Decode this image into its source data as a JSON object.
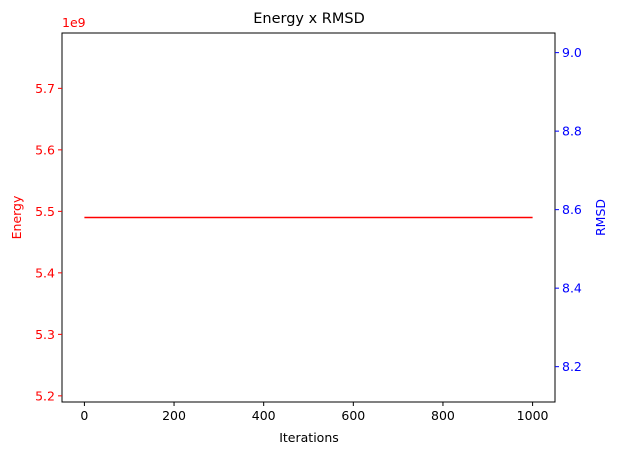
{
  "chart_data": {
    "type": "line",
    "title": "Energy x RMSD",
    "xlabel": "Iterations",
    "xlim": [
      -50,
      1050
    ],
    "x_ticks": [
      0,
      200,
      400,
      600,
      800,
      1000
    ],
    "left_axis": {
      "label": "Energy",
      "color": "#ff0000",
      "multiplier_label": "1e9",
      "lim": [
        5.19,
        5.79
      ],
      "ticks": [
        5.2,
        5.3,
        5.4,
        5.5,
        5.6,
        5.7
      ],
      "tick_labels": [
        "5.2",
        "5.3",
        "5.4",
        "5.5",
        "5.6",
        "5.7"
      ]
    },
    "right_axis": {
      "label": "RMSD",
      "color": "#0000ff",
      "lim": [
        8.11,
        9.05
      ],
      "ticks": [
        8.2,
        8.4,
        8.6,
        8.8,
        9.0
      ],
      "tick_labels": [
        "8.2",
        "8.4",
        "8.6",
        "8.8",
        "9.0"
      ]
    },
    "series": [
      {
        "axis": "left",
        "color": "#ff0000",
        "x": [
          0,
          1000
        ],
        "values": [
          5.49,
          5.49
        ]
      }
    ],
    "grid": false
  }
}
